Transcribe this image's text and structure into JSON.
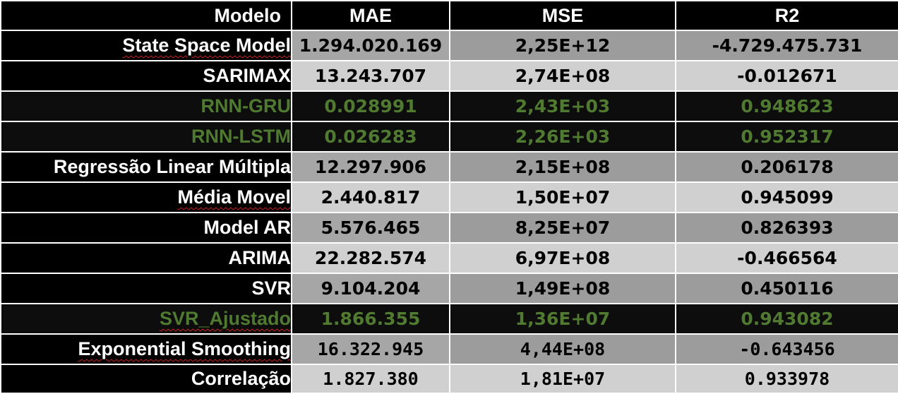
{
  "headers": {
    "model": "Modelo",
    "mae": "MAE",
    "mse": "MSE",
    "r2": "R2"
  },
  "rows": [
    {
      "model": "State Space Model",
      "mae": "1.294.020.169",
      "mse": "2,25E+12",
      "r2": "-4.729.475.731"
    },
    {
      "model": "SARIMAX",
      "mae": "13.243.707",
      "mse": "2,74E+08",
      "r2": "-0.012671"
    },
    {
      "model": "RNN-GRU",
      "mae": "0.028991",
      "mse": "2,43E+03",
      "r2": "0.948623"
    },
    {
      "model": "RNN-LSTM",
      "mae": "0.026283",
      "mse": "2,26E+03",
      "r2": "0.952317"
    },
    {
      "model": "Regressão Linear Múltipla",
      "mae": "12.297.906",
      "mse": "2,15E+08",
      "r2": "0.206178"
    },
    {
      "model": "Média Movel",
      "mae": "2.440.817",
      "mse": "1,50E+07",
      "r2": "0.945099"
    },
    {
      "model": "Model AR",
      "mae": "5.576.465",
      "mse": "8,25E+07",
      "r2": "0.826393"
    },
    {
      "model": "ARIMA",
      "mae": "22.282.574",
      "mse": "6,97E+08",
      "r2": "-0.466564"
    },
    {
      "model": "SVR",
      "mae": "9.104.204",
      "mse": "1,49E+08",
      "r2": "0.450116"
    },
    {
      "model": "SVR_Ajustado",
      "mae": "1.866.355",
      "mse": "1,36E+07",
      "r2": "0.943082"
    },
    {
      "model": "Exponential Smoothing",
      "mae": "16.322.945",
      "mse": "4,44E+08",
      "r2": "-0.643456"
    },
    {
      "model": "Correlação",
      "mae": "1.827.380",
      "mse": "1,81E+07",
      "r2": "0.933978"
    }
  ],
  "colors": {
    "header_bg": "#000000",
    "header_text": "#ffffff",
    "highlight_bg": "#0d0d0d",
    "highlight_text": "#4f7a30",
    "row_gray": "#a6a6a6",
    "row_light": "#d0d0d0",
    "spellcheck": "#cc2222"
  }
}
